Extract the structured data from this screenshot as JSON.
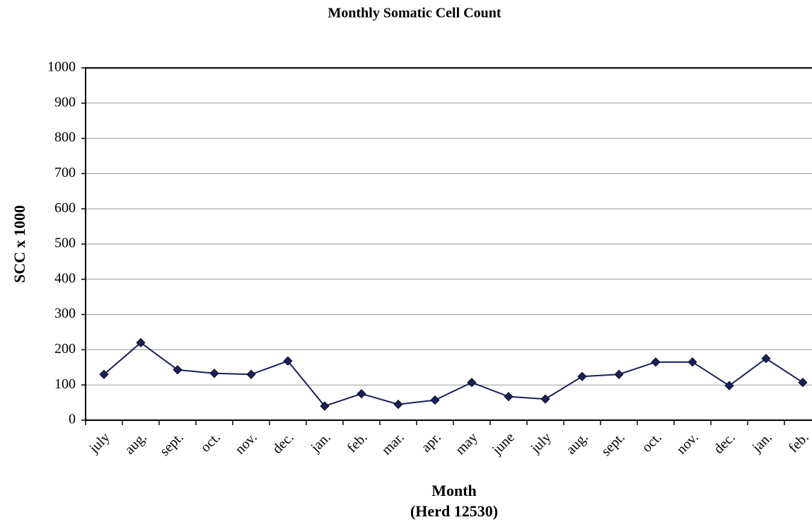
{
  "chart_data": {
    "type": "line",
    "title": "Monthly Somatic Cell Count",
    "ylabel": "SCC x 1000",
    "xlabel": [
      "Month",
      "(Herd 12530)"
    ],
    "categories": [
      "july",
      "aug.",
      "sept.",
      "oct.",
      "nov.",
      "dec.",
      "jan.",
      "feb.",
      "mar.",
      "apr.",
      "may",
      "june",
      "july",
      "aug.",
      "sept.",
      "oct.",
      "nov.",
      "dec.",
      "jan.",
      "feb."
    ],
    "values": [
      130,
      220,
      143,
      133,
      130,
      168,
      40,
      75,
      45,
      57,
      107,
      67,
      60,
      124,
      130,
      165,
      165,
      98,
      175,
      107
    ],
    "color": "#1a1f5e",
    "ylim": [
      0,
      1000
    ],
    "yticks": [
      0,
      100,
      200,
      300,
      400,
      500,
      600,
      700,
      800,
      900,
      1000
    ],
    "grid": true
  }
}
